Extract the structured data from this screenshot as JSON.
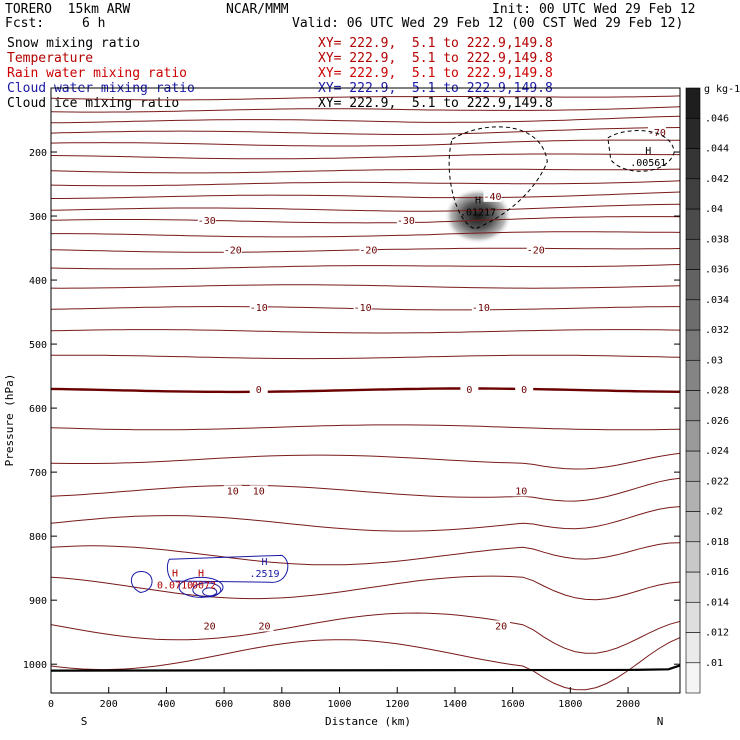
{
  "header": {
    "model": "TORERO  15km ARW",
    "center": "NCAR/MMM",
    "init": "Init: 00 UTC Wed 29 Feb 12",
    "fcst_label": "Fcst:",
    "fcst_value": "6 h",
    "valid": "Valid: 06 UTC Wed 29 Feb 12 (00 CST Wed 29 Feb 12)"
  },
  "legend": [
    {
      "name": "Snow mixing ratio",
      "xy": "XY= 222.9,  5.1 to 222.9,149.8",
      "color": "#000000"
    },
    {
      "name": "Temperature",
      "xy": "XY= 222.9,  5.1 to 222.9,149.8",
      "color": "#b30000"
    },
    {
      "name": "Rain water mixing ratio",
      "xy": "XY= 222.9,  5.1 to 222.9,149.8",
      "color": "#cc0000"
    },
    {
      "name": "Cloud water mixing ratio",
      "xy": "XY= 222.9,  5.1 to 222.9,149.8",
      "color": "#1a1aa6"
    },
    {
      "name": "Cloud ice mixing ratio",
      "xy": "XY= 222.9,  5.1 to 222.9,149.8",
      "color": "#000000"
    }
  ],
  "chart_data": {
    "type": "cross-section",
    "xlabel": "Distance (km)",
    "ylabel": "Pressure (hPa)",
    "x_ticks": [
      0,
      200,
      400,
      600,
      800,
      1000,
      1200,
      1400,
      1600,
      1800,
      2000
    ],
    "y_ticks": [
      200,
      300,
      400,
      500,
      600,
      700,
      800,
      900,
      1000
    ],
    "xlim": [
      0,
      2180
    ],
    "ylim": [
      100,
      1045
    ],
    "x_end_labels": {
      "left": "S",
      "right": "N"
    },
    "colorbar": {
      "units": "g kg-1",
      "ticks": [
        ".01",
        ".012",
        ".014",
        ".016",
        ".018",
        ".02",
        ".022",
        ".024",
        ".026",
        ".028",
        ".03",
        ".032",
        ".034",
        ".036",
        ".038",
        ".04",
        ".042",
        ".044",
        ".046"
      ]
    },
    "temperature_contours": [
      {
        "label": "-70",
        "pressure": 170,
        "label_x": [
          2100
        ]
      },
      {
        "label": "-40",
        "pressure": 270,
        "label_x": [
          1530
        ]
      },
      {
        "label": "-30",
        "pressure": 308,
        "label_x": [
          540,
          1230
        ]
      },
      {
        "label": "-20",
        "pressure": 354,
        "label_x": [
          630,
          1100,
          1680
        ]
      },
      {
        "label": "-10",
        "pressure": 444,
        "label_x": [
          720,
          1080,
          1490
        ]
      },
      {
        "label": "0",
        "pressure": 572,
        "label_x": [
          720,
          1450,
          1640
        ]
      },
      {
        "label": "10",
        "pressure": 730,
        "label_x": [
          630,
          720,
          1630
        ]
      },
      {
        "label": "20",
        "pressure": 941,
        "label_x": [
          550,
          740,
          1560
        ]
      }
    ],
    "maxima": [
      {
        "marker": "H",
        "value": ".01217",
        "x_km": 1480,
        "pressure": 285,
        "field": "snow"
      },
      {
        "marker": "H",
        "value": ".00561",
        "x_km": 2070,
        "pressure": 208,
        "field": "cloud ice"
      },
      {
        "marker": "H",
        "value": ".2519",
        "x_km": 740,
        "pressure": 850,
        "field": "cloud water"
      },
      {
        "marker": "H",
        "value": "0.0710",
        "x_km": 430,
        "pressure": 868,
        "field": "rain water"
      },
      {
        "marker": "H",
        "value": ".0072",
        "x_km": 520,
        "pressure": 868,
        "field": "rain water"
      }
    ]
  }
}
